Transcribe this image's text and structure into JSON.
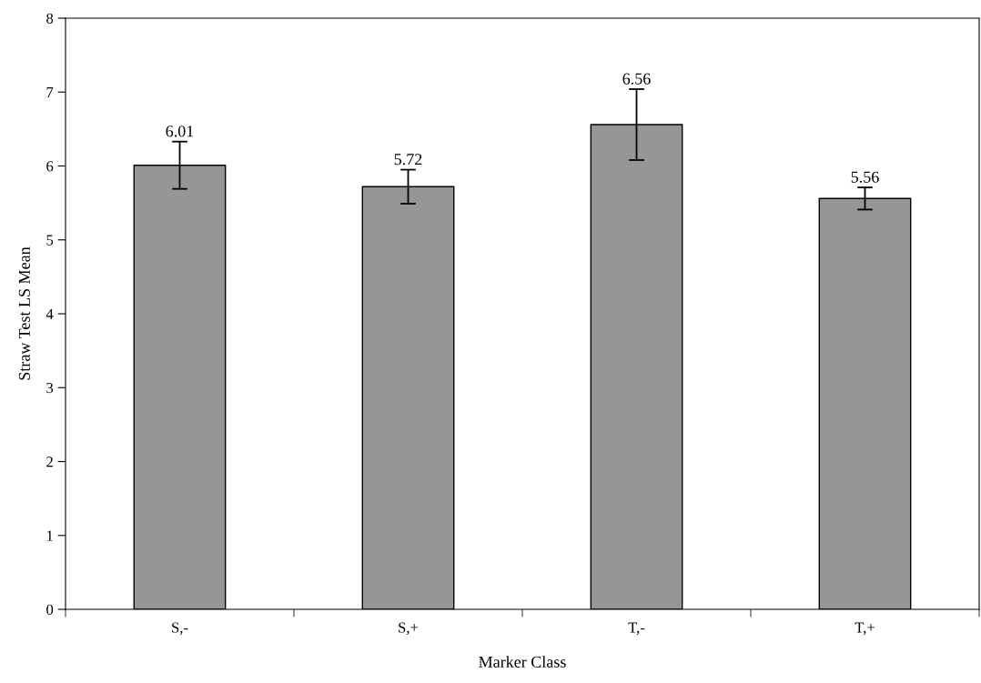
{
  "chart_data": {
    "type": "bar",
    "xlabel": "Marker Class",
    "ylabel": "Straw Test LS Mean",
    "categories": [
      "S,-",
      "S,+",
      "T,-",
      "T,+"
    ],
    "values": [
      6.01,
      5.72,
      6.56,
      5.56
    ],
    "errors": [
      0.32,
      0.23,
      0.48,
      0.15
    ],
    "color": "#969696",
    "data_labels": true,
    "ylim": [
      0,
      8
    ],
    "yticks": [
      0,
      1,
      2,
      3,
      4,
      5,
      6,
      7,
      8
    ],
    "grid": false,
    "legend": false
  }
}
